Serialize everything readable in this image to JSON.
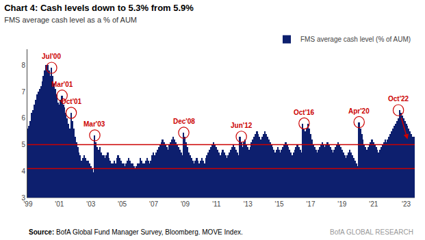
{
  "chart_data": {
    "type": "bar",
    "title": "Chart 4: Cash levels down to 5.3% from 5.9%",
    "subtitle": "FMS average cash level as a % of AUM",
    "source_label": "Source:",
    "source": " BofA Global Fund Manager Survey, Bloomberg. MOVE Index.",
    "branding": "BofA GLOBAL RESEARCH",
    "categories": [
      "'99",
      null,
      null,
      null,
      null,
      null,
      null,
      null,
      null,
      null,
      null,
      null,
      null,
      null,
      null,
      null,
      null,
      null,
      null,
      null,
      null,
      null,
      null,
      null,
      "'01",
      null,
      null,
      null,
      null,
      null,
      null,
      null,
      null,
      null,
      null,
      null,
      null,
      null,
      null,
      null,
      null,
      null,
      null,
      null,
      null,
      null,
      null,
      null,
      "'03",
      null,
      null,
      null,
      null,
      null,
      null,
      null,
      null,
      null,
      null,
      null,
      null,
      null,
      null,
      null,
      null,
      null,
      null,
      null,
      null,
      null,
      null,
      null,
      "'05",
      null,
      null,
      null,
      null,
      null,
      null,
      null,
      null,
      null,
      null,
      null,
      null,
      null,
      null,
      null,
      null,
      null,
      null,
      null,
      null,
      null,
      null,
      null,
      "'07",
      null,
      null,
      null,
      null,
      null,
      null,
      null,
      null,
      null,
      null,
      null,
      null,
      null,
      null,
      null,
      null,
      null,
      null,
      null,
      null,
      null,
      null,
      null,
      "'09",
      null,
      null,
      null,
      null,
      null,
      null,
      null,
      null,
      null,
      null,
      null,
      null,
      null,
      null,
      null,
      null,
      null,
      null,
      null,
      null,
      null,
      null,
      null,
      "'11",
      null,
      null,
      null,
      null,
      null,
      null,
      null,
      null,
      null,
      null,
      null,
      null,
      null,
      null,
      null,
      null,
      null,
      null,
      null,
      null,
      null,
      null,
      null,
      "'13",
      null,
      null,
      null,
      null,
      null,
      null,
      null,
      null,
      null,
      null,
      null,
      null,
      null,
      null,
      null,
      null,
      null,
      null,
      null,
      null,
      null,
      null,
      null,
      "'15",
      null,
      null,
      null,
      null,
      null,
      null,
      null,
      null,
      null,
      null,
      null,
      null,
      null,
      null,
      null,
      null,
      null,
      null,
      null,
      null,
      null,
      null,
      null,
      "'17",
      null,
      null,
      null,
      null,
      null,
      null,
      null,
      null,
      null,
      null,
      null,
      null,
      null,
      null,
      null,
      null,
      null,
      null,
      null,
      null,
      null,
      null,
      null,
      "'19",
      null,
      null,
      null,
      null,
      null,
      null,
      null,
      null,
      null,
      null,
      null,
      null,
      null,
      null,
      null,
      null,
      null,
      null,
      null,
      null,
      null,
      null,
      null,
      "'21",
      null,
      null,
      null,
      null,
      null,
      null,
      null,
      null,
      null,
      null,
      null,
      null,
      null,
      null,
      null,
      null,
      null,
      null,
      null,
      null,
      null,
      null,
      null,
      null,
      "'23",
      null,
      null,
      null,
      null,
      null,
      null
    ],
    "series": [
      {
        "name": "FMS average cash level (% of AUM)",
        "color": "#0d1f6e",
        "values": [
          5.6,
          5.7,
          5.9,
          6.2,
          6.3,
          6.5,
          6.7,
          6.9,
          7.0,
          7.1,
          7.2,
          7.4,
          7.6,
          7.8,
          8.0,
          8.0,
          7.8,
          7.6,
          7.9,
          7.6,
          7.3,
          7.1,
          6.9,
          6.6,
          6.5,
          6.7,
          6.85,
          6.5,
          6.4,
          6.2,
          6.0,
          5.8,
          5.6,
          6.2,
          5.9,
          5.6,
          5.3,
          5.1,
          4.9,
          4.7,
          4.6,
          4.4,
          4.5,
          4.6,
          4.5,
          4.4,
          4.4,
          4.3,
          4.2,
          4.1,
          3.95,
          5.35,
          5.1,
          4.9,
          4.8,
          4.9,
          4.7,
          4.6,
          4.6,
          4.5,
          4.6,
          4.7,
          4.5,
          4.4,
          4.3,
          4.3,
          4.4,
          4.3,
          4.5,
          4.6,
          4.5,
          4.4,
          4.3,
          4.3,
          4.2,
          4.3,
          4.4,
          4.5,
          4.4,
          4.3,
          4.3,
          4.2,
          4.1,
          4.2,
          4.3,
          4.3,
          4.5,
          4.4,
          4.3,
          4.3,
          4.4,
          4.5,
          4.4,
          4.3,
          4.4,
          4.6,
          4.7,
          4.6,
          4.7,
          4.8,
          4.9,
          5.0,
          5.1,
          5.2,
          5.1,
          5.0,
          4.9,
          4.8,
          5.0,
          5.1,
          5.2,
          5.3,
          5.2,
          5.1,
          5.0,
          4.9,
          4.8,
          4.7,
          4.6,
          5.45,
          5.3,
          5.1,
          4.9,
          4.7,
          4.6,
          4.5,
          4.4,
          4.3,
          4.4,
          4.5,
          4.4,
          4.3,
          4.4,
          4.5,
          4.4,
          4.3,
          4.5,
          4.6,
          4.7,
          4.8,
          4.9,
          5.0,
          5.1,
          5.0,
          4.9,
          4.8,
          4.7,
          4.6,
          4.7,
          4.8,
          4.7,
          4.6,
          4.5,
          4.6,
          4.7,
          4.8,
          4.9,
          5.0,
          4.9,
          4.8,
          4.7,
          4.6,
          5.3,
          5.1,
          4.9,
          5.1,
          5.2,
          5.0,
          4.9,
          4.8,
          4.9,
          5.1,
          5.2,
          5.3,
          5.4,
          5.5,
          5.4,
          5.3,
          5.2,
          5.3,
          5.4,
          5.5,
          5.4,
          5.3,
          5.2,
          5.1,
          5.0,
          4.9,
          4.8,
          4.7,
          4.8,
          4.9,
          4.8,
          4.7,
          4.8,
          4.9,
          5.0,
          5.1,
          5.0,
          4.9,
          4.8,
          4.7,
          4.6,
          4.7,
          4.8,
          4.9,
          5.0,
          4.9,
          4.8,
          4.7,
          5.8,
          5.6,
          5.5,
          5.6,
          5.8,
          5.6,
          5.4,
          5.2,
          5.0,
          4.9,
          4.8,
          4.7,
          4.8,
          4.9,
          5.0,
          5.1,
          5.0,
          4.9,
          5.0,
          5.1,
          5.0,
          4.9,
          4.8,
          4.7,
          4.8,
          4.9,
          5.0,
          5.1,
          5.0,
          4.9,
          4.8,
          4.7,
          4.6,
          4.5,
          4.6,
          4.7,
          4.8,
          4.7,
          4.6,
          4.5,
          4.4,
          4.3,
          4.2,
          5.85,
          5.6,
          5.4,
          5.2,
          5.0,
          4.9,
          4.8,
          4.9,
          5.0,
          5.1,
          5.2,
          5.1,
          5.0,
          4.9,
          4.8,
          4.7,
          4.8,
          4.9,
          5.0,
          5.1,
          5.2,
          5.1,
          5.2,
          5.3,
          5.4,
          5.5,
          5.6,
          5.7,
          5.8,
          5.9,
          6.0,
          6.3,
          6.2,
          6.1,
          6.0,
          5.9,
          5.8,
          5.7,
          5.6,
          5.5,
          5.4,
          5.3,
          5.3
        ]
      }
    ],
    "ylim": [
      3.0,
      8.6
    ],
    "yticks": [
      3,
      4,
      5,
      6,
      7,
      8
    ],
    "grid": false,
    "legend": "upper right",
    "reference_lines": [
      {
        "y": 5.0,
        "color": "#cc0000"
      },
      {
        "y": 4.1,
        "color": "#cc0000"
      }
    ],
    "annotations": [
      {
        "text": "Jul'00",
        "x": 18,
        "y": 7.9,
        "color": "#cc0000"
      },
      {
        "text": "Mar'01",
        "x": 26,
        "y": 6.85,
        "color": "#cc0000"
      },
      {
        "text": "Oct'01",
        "x": 33,
        "y": 6.2,
        "color": "#cc0000"
      },
      {
        "text": "Mar'03",
        "x": 51,
        "y": 5.35,
        "color": "#cc0000"
      },
      {
        "text": "Dec'08",
        "x": 119,
        "y": 5.45,
        "color": "#cc0000"
      },
      {
        "text": "Jun'12",
        "x": 163,
        "y": 5.3,
        "color": "#cc0000"
      },
      {
        "text": "Oct'16",
        "x": 211,
        "y": 5.8,
        "color": "#cc0000"
      },
      {
        "text": "Apr'20",
        "x": 253,
        "y": 5.85,
        "color": "#cc0000"
      },
      {
        "text": "Oct'22",
        "x": 283,
        "y": 6.3,
        "color": "#cc0000"
      }
    ],
    "arrows": [
      {
        "x0": 285,
        "y0": 6.05,
        "x1": 290,
        "y1": 5.2,
        "color": "#cc0000"
      }
    ]
  }
}
